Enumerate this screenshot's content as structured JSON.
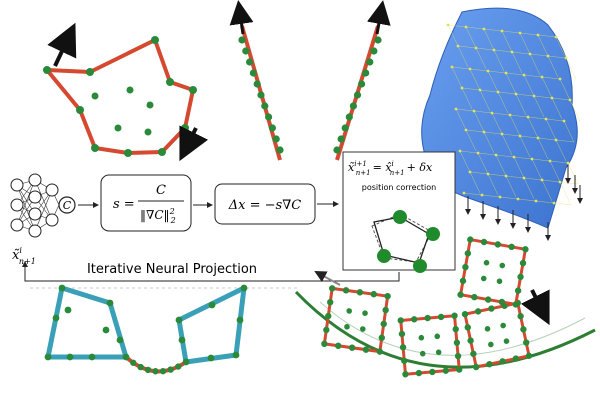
{
  "pipeline": {
    "input_node_label": "C",
    "step_size_formula": "s = C / ‖∇C‖²₂",
    "step_size_lhs": "s =",
    "step_size_num": "C",
    "step_size_den": "‖∇C‖",
    "step_size_den_sup": "2",
    "step_size_den_sub": "2",
    "delta_formula": "Δx = −s∇C",
    "update_formula": "x̃ⁱ⁺¹ₙ₊₁ = x̂ⁱₙ₊₁ + δx",
    "update_lhs": "x̃",
    "update_lhs_sup": "i+1",
    "update_lhs_sub": "n+1",
    "update_mid": "= x̂",
    "update_mid_sup": "i",
    "update_mid_sub": "n+1",
    "update_rhs": "+ δx",
    "position_correction_label": "position correction",
    "loop_output": "x̃",
    "loop_output_sup": "i",
    "loop_output_sub": "n+1",
    "loop_title": "Iterative Neural Projection"
  },
  "colors": {
    "rod": "#d4492f",
    "particle": "#2a8a3a",
    "cloth": "#4f86de",
    "cloth_edge": "#e3e35a",
    "rigid_outline": "#3aa0b8",
    "arrow": "#111111",
    "ground": "#2d7d32"
  }
}
